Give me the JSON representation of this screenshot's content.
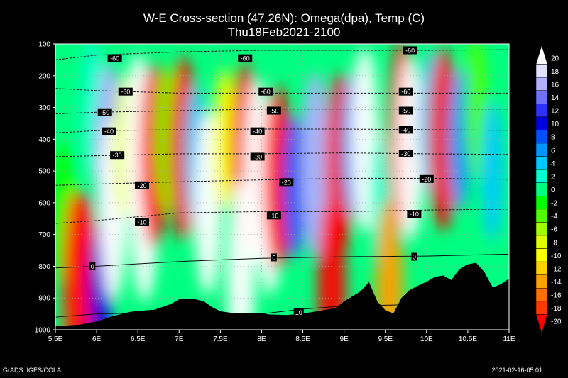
{
  "chart_data": {
    "type": "heatmap",
    "title": "W-E Cross-section (47.26N): Omega(dpa), Temp (C)",
    "subtitle": "Thu18Feb2021-2100",
    "xlabel": "",
    "ylabel": "",
    "x_ticks": [
      "5.5E",
      "6E",
      "6.5E",
      "7E",
      "7.5E",
      "8E",
      "8.5E",
      "9E",
      "9.5E",
      "10E",
      "10.5E",
      "11E"
    ],
    "x_tick_values": [
      5.5,
      6,
      6.5,
      7,
      7.5,
      8,
      8.5,
      9,
      9.5,
      10,
      10.5,
      11
    ],
    "y_ticks": [
      100,
      200,
      300,
      400,
      500,
      600,
      700,
      800,
      900,
      1000
    ],
    "xlim": [
      5.5,
      11
    ],
    "ylim": [
      1000,
      100
    ],
    "grid": true,
    "colorbar": {
      "levels": [
        20,
        18,
        16,
        14,
        12,
        10,
        8,
        6,
        4,
        2,
        0,
        -2,
        -4,
        -6,
        -8,
        -10,
        -12,
        -14,
        -16,
        -18,
        -20
      ],
      "colors": [
        "#ffffff",
        "#e0e0ff",
        "#b0b0ff",
        "#7070ff",
        "#3030ff",
        "#0000e0",
        "#0050ff",
        "#0096ff",
        "#00c8ff",
        "#00ffd0",
        "#00ff80",
        "#00ff00",
        "#50ff00",
        "#a0ff00",
        "#e0ff00",
        "#ffff00",
        "#ffd000",
        "#ffa000",
        "#ff7000",
        "#ff3800",
        "#ff0000"
      ],
      "placement": "right"
    },
    "omega_cells": [
      {
        "x": 5.6,
        "p": 630,
        "v": -2
      },
      {
        "x": 5.75,
        "p": 850,
        "v": -18
      },
      {
        "x": 5.85,
        "p": 860,
        "v": -20
      },
      {
        "x": 5.95,
        "p": 300,
        "v": 2
      },
      {
        "x": 6.05,
        "p": 880,
        "v": 10
      },
      {
        "x": 6.15,
        "p": 450,
        "v": 16
      },
      {
        "x": 6.2,
        "p": 620,
        "v": 20
      },
      {
        "x": 6.35,
        "p": 420,
        "v": -8
      },
      {
        "x": 6.5,
        "p": 420,
        "v": 20
      },
      {
        "x": 6.58,
        "p": 620,
        "v": 20
      },
      {
        "x": 6.7,
        "p": 450,
        "v": -20
      },
      {
        "x": 6.85,
        "p": 400,
        "v": -4
      },
      {
        "x": 7.05,
        "p": 430,
        "v": -20
      },
      {
        "x": 7.2,
        "p": 450,
        "v": 4
      },
      {
        "x": 7.35,
        "p": 600,
        "v": 20
      },
      {
        "x": 7.55,
        "p": 400,
        "v": -10
      },
      {
        "x": 7.8,
        "p": 450,
        "v": -20
      },
      {
        "x": 7.75,
        "p": 820,
        "v": 20
      },
      {
        "x": 7.95,
        "p": 500,
        "v": 20
      },
      {
        "x": 8.1,
        "p": 600,
        "v": 20
      },
      {
        "x": 8.2,
        "p": 520,
        "v": -20
      },
      {
        "x": 8.4,
        "p": 550,
        "v": 8
      },
      {
        "x": 8.65,
        "p": 480,
        "v": 16
      },
      {
        "x": 8.95,
        "p": 480,
        "v": -20
      },
      {
        "x": 8.85,
        "p": 870,
        "v": -20
      },
      {
        "x": 9.1,
        "p": 420,
        "v": 6
      },
      {
        "x": 9.25,
        "p": 400,
        "v": 20
      },
      {
        "x": 9.45,
        "p": 600,
        "v": 2
      },
      {
        "x": 9.55,
        "p": 880,
        "v": -14
      },
      {
        "x": 9.7,
        "p": 380,
        "v": -20
      },
      {
        "x": 9.8,
        "p": 430,
        "v": 20
      },
      {
        "x": 10.05,
        "p": 350,
        "v": 4
      },
      {
        "x": 10.2,
        "p": 400,
        "v": -20
      },
      {
        "x": 10.4,
        "p": 400,
        "v": 6
      },
      {
        "x": 10.6,
        "p": 300,
        "v": -4
      },
      {
        "x": 10.8,
        "p": 500,
        "v": 4
      }
    ],
    "temp_contours": [
      {
        "label": "-60",
        "points": [
          [
            5.5,
            150
          ],
          [
            6,
            135
          ],
          [
            7,
            125
          ],
          [
            8,
            120
          ],
          [
            9,
            120
          ],
          [
            10,
            120
          ],
          [
            11,
            118
          ]
        ]
      },
      {
        "label": "-60",
        "points": [
          [
            5.5,
            240
          ],
          [
            6,
            247
          ],
          [
            7,
            255
          ],
          [
            8,
            255
          ],
          [
            9,
            255
          ],
          [
            10,
            255
          ],
          [
            11,
            255
          ]
        ]
      },
      {
        "label": "-50",
        "points": [
          [
            5.5,
            320
          ],
          [
            6,
            315
          ],
          [
            7,
            310
          ],
          [
            8,
            305
          ],
          [
            9,
            305
          ],
          [
            10,
            305
          ],
          [
            11,
            305
          ]
        ]
      },
      {
        "label": "-40",
        "points": [
          [
            5.5,
            380
          ],
          [
            6,
            373
          ],
          [
            7,
            370
          ],
          [
            8,
            368
          ],
          [
            9,
            368
          ],
          [
            10,
            370
          ],
          [
            11,
            372
          ]
        ]
      },
      {
        "label": "-30",
        "points": [
          [
            5.5,
            455
          ],
          [
            6,
            452
          ],
          [
            7,
            446
          ],
          [
            8,
            446
          ],
          [
            9,
            443
          ],
          [
            10,
            446
          ],
          [
            11,
            448
          ]
        ]
      },
      {
        "label": "-20",
        "points": [
          [
            5.5,
            545
          ],
          [
            6,
            541
          ],
          [
            7,
            534
          ],
          [
            8,
            528
          ],
          [
            9,
            523
          ],
          [
            10,
            523
          ],
          [
            11,
            526
          ]
        ]
      },
      {
        "label": "-10",
        "points": [
          [
            5.5,
            665
          ],
          [
            6,
            656
          ],
          [
            7,
            632
          ],
          [
            8,
            628
          ],
          [
            9,
            628
          ],
          [
            10,
            623
          ],
          [
            11,
            620
          ]
        ]
      },
      {
        "label": "0",
        "points": [
          [
            5.5,
            805
          ],
          [
            6,
            800
          ],
          [
            7,
            785
          ],
          [
            8,
            775
          ],
          [
            9,
            770
          ],
          [
            10,
            768
          ],
          [
            11,
            762
          ]
        ]
      },
      {
        "label": "10",
        "points": [
          [
            5.5,
            960
          ],
          [
            6,
            950
          ],
          [
            7,
            945
          ],
          [
            8,
            950
          ],
          [
            8.5,
            935
          ],
          [
            9,
            925
          ],
          [
            10,
            920
          ],
          [
            11,
            915
          ]
        ]
      }
    ],
    "temp_labels": [
      {
        "text": "-60",
        "x": 6.22,
        "p": 145
      },
      {
        "text": "-60",
        "x": 7.8,
        "p": 145
      },
      {
        "text": "-60",
        "x": 9.8,
        "p": 120
      },
      {
        "text": "-60",
        "x": 6.35,
        "p": 250
      },
      {
        "text": "-60",
        "x": 8.05,
        "p": 250
      },
      {
        "text": "-60",
        "x": 9.75,
        "p": 250
      },
      {
        "text": "-50",
        "x": 6.1,
        "p": 315
      },
      {
        "text": "-50",
        "x": 8.15,
        "p": 310
      },
      {
        "text": "-50",
        "x": 9.75,
        "p": 310
      },
      {
        "text": "-40",
        "x": 6.15,
        "p": 375
      },
      {
        "text": "-40",
        "x": 7.95,
        "p": 375
      },
      {
        "text": "-40",
        "x": 9.75,
        "p": 370
      },
      {
        "text": "-30",
        "x": 6.25,
        "p": 450
      },
      {
        "text": "-30",
        "x": 7.95,
        "p": 455
      },
      {
        "text": "-30",
        "x": 9.75,
        "p": 445
      },
      {
        "text": "-20",
        "x": 6.55,
        "p": 545
      },
      {
        "text": "-20",
        "x": 8.3,
        "p": 535
      },
      {
        "text": "-20",
        "x": 10.0,
        "p": 525
      },
      {
        "text": "-10",
        "x": 6.55,
        "p": 660
      },
      {
        "text": "-10",
        "x": 8.15,
        "p": 640
      },
      {
        "text": "-10",
        "x": 9.85,
        "p": 635
      },
      {
        "text": "0",
        "x": 5.95,
        "p": 800
      },
      {
        "text": "0",
        "x": 8.15,
        "p": 772
      },
      {
        "text": "0",
        "x": 9.85,
        "p": 770
      },
      {
        "text": "10",
        "x": 8.45,
        "p": 945
      }
    ],
    "terrain": [
      [
        5.5,
        990
      ],
      [
        5.8,
        985
      ],
      [
        6.0,
        975
      ],
      [
        6.2,
        958
      ],
      [
        6.4,
        945
      ],
      [
        6.5,
        942
      ],
      [
        6.7,
        938
      ],
      [
        6.9,
        920
      ],
      [
        7.0,
        905
      ],
      [
        7.2,
        905
      ],
      [
        7.3,
        912
      ],
      [
        7.4,
        930
      ],
      [
        7.5,
        943
      ],
      [
        7.7,
        950
      ],
      [
        7.9,
        948
      ],
      [
        8.0,
        950
      ],
      [
        8.1,
        953
      ],
      [
        8.3,
        955
      ],
      [
        8.5,
        950
      ],
      [
        8.7,
        942
      ],
      [
        8.9,
        932
      ],
      [
        9.0,
        912
      ],
      [
        9.2,
        880
      ],
      [
        9.3,
        852
      ],
      [
        9.4,
        912
      ],
      [
        9.5,
        940
      ],
      [
        9.6,
        950
      ],
      [
        9.7,
        900
      ],
      [
        9.8,
        875
      ],
      [
        9.9,
        862
      ],
      [
        10.0,
        850
      ],
      [
        10.1,
        835
      ],
      [
        10.2,
        830
      ],
      [
        10.3,
        845
      ],
      [
        10.4,
        810
      ],
      [
        10.5,
        795
      ],
      [
        10.6,
        790
      ],
      [
        10.7,
        820
      ],
      [
        10.8,
        868
      ],
      [
        10.9,
        858
      ],
      [
        11.0,
        840
      ]
    ]
  },
  "footer": {
    "left": "GrADS: IGES/COLA",
    "right": "2021-02-16-05:01"
  }
}
